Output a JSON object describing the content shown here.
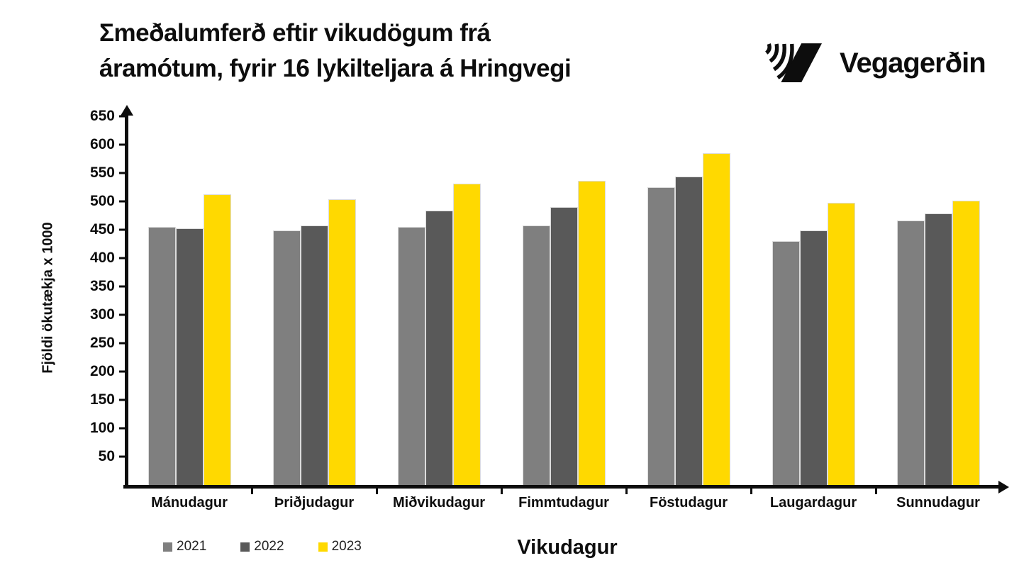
{
  "header": {
    "title_line1": "Σmeðalumferð eftir vikudögum frá",
    "title_line2": "áramótum, fyrir 16 lykilteljara á Hringvegi",
    "logo_text": "Vegagerðin"
  },
  "chart_data": {
    "type": "bar",
    "title": "Σmeðalumferð eftir vikudögum frá áramótum, fyrir 16 lykilteljara á Hringvegi",
    "xlabel": "Vikudagur",
    "ylabel": "Fjöldi ökutækja x 1000",
    "categories": [
      "Mánudagur",
      "Þriðjudagur",
      "Miðvikudagur",
      "Fimmtudagur",
      "Föstudagur",
      "Laugardagur",
      "Sunnudagur"
    ],
    "series": [
      {
        "name": "2021",
        "color": "#7F7F7F",
        "values": [
          455,
          449,
          455,
          458,
          525,
          430,
          466
        ]
      },
      {
        "name": "2022",
        "color": "#595959",
        "values": [
          452,
          457,
          484,
          490,
          544,
          449,
          479
        ]
      },
      {
        "name": "2023",
        "color": "#FFD900",
        "values": [
          513,
          504,
          531,
          536,
          585,
          498,
          501
        ]
      }
    ],
    "ylim": [
      0,
      650
    ],
    "yticks": [
      50,
      100,
      150,
      200,
      250,
      300,
      350,
      400,
      450,
      500,
      550,
      600,
      650
    ],
    "grid": false,
    "legend_position": "bottom-left",
    "axis_color": "#0d0d0d"
  }
}
